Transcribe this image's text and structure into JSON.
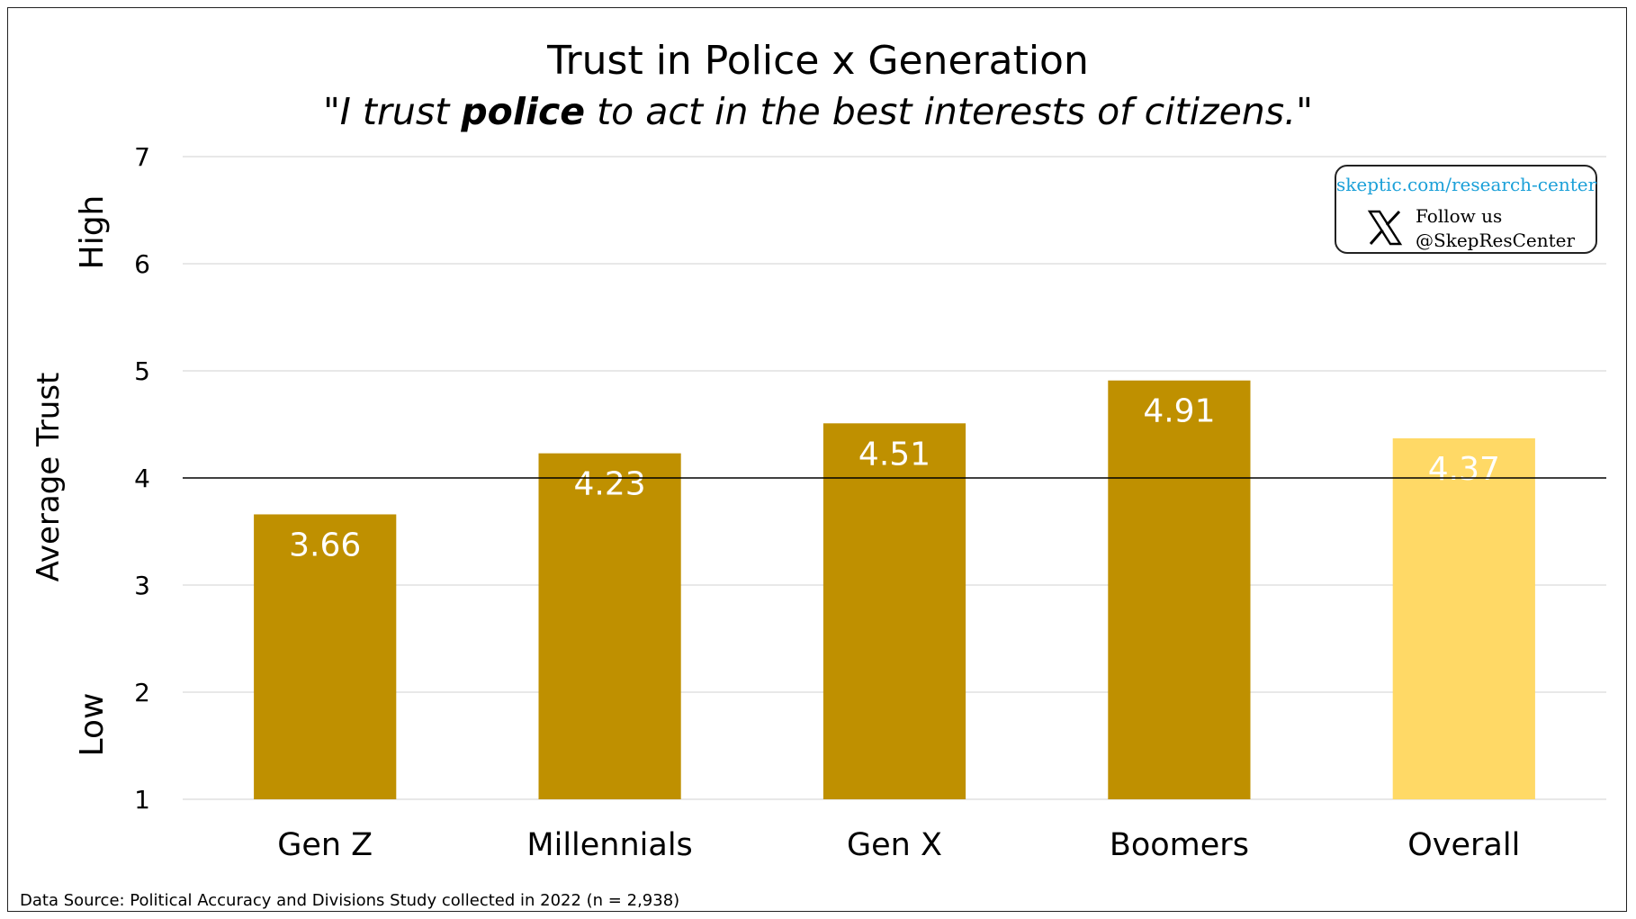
{
  "chart_data": {
    "type": "bar",
    "title": "Trust in Police x Generation",
    "subtitle": {
      "before": "\"I trust ",
      "emphasis": "police",
      "after": " to act in the best interests of citizens.\""
    },
    "ylabel": "Average Trust",
    "ylabel_high": "High",
    "ylabel_low": "Low",
    "ylim": [
      1,
      7
    ],
    "yticks": [
      1,
      2,
      3,
      4,
      5,
      6,
      7
    ],
    "reference_line": 4,
    "grid": true,
    "categories": [
      "Gen Z",
      "Millennials",
      "Gen X",
      "Boomers",
      "Overall"
    ],
    "values": [
      3.66,
      4.23,
      4.51,
      4.91,
      4.37
    ],
    "value_labels": [
      "3.66",
      "4.23",
      "4.51",
      "4.91",
      "4.37"
    ],
    "colors": [
      "#bf9000",
      "#bf9000",
      "#bf9000",
      "#bf9000",
      "#ffd966"
    ],
    "label_color": "#ffffff"
  },
  "follow": {
    "url": "skeptic.com/research-center",
    "line1": "Follow us",
    "line2": "@SkepResCenter",
    "icon": "x-logo-icon"
  },
  "source_note": "Data Source: Political Accuracy and Divisions Study collected in 2022 (n = 2,938)"
}
